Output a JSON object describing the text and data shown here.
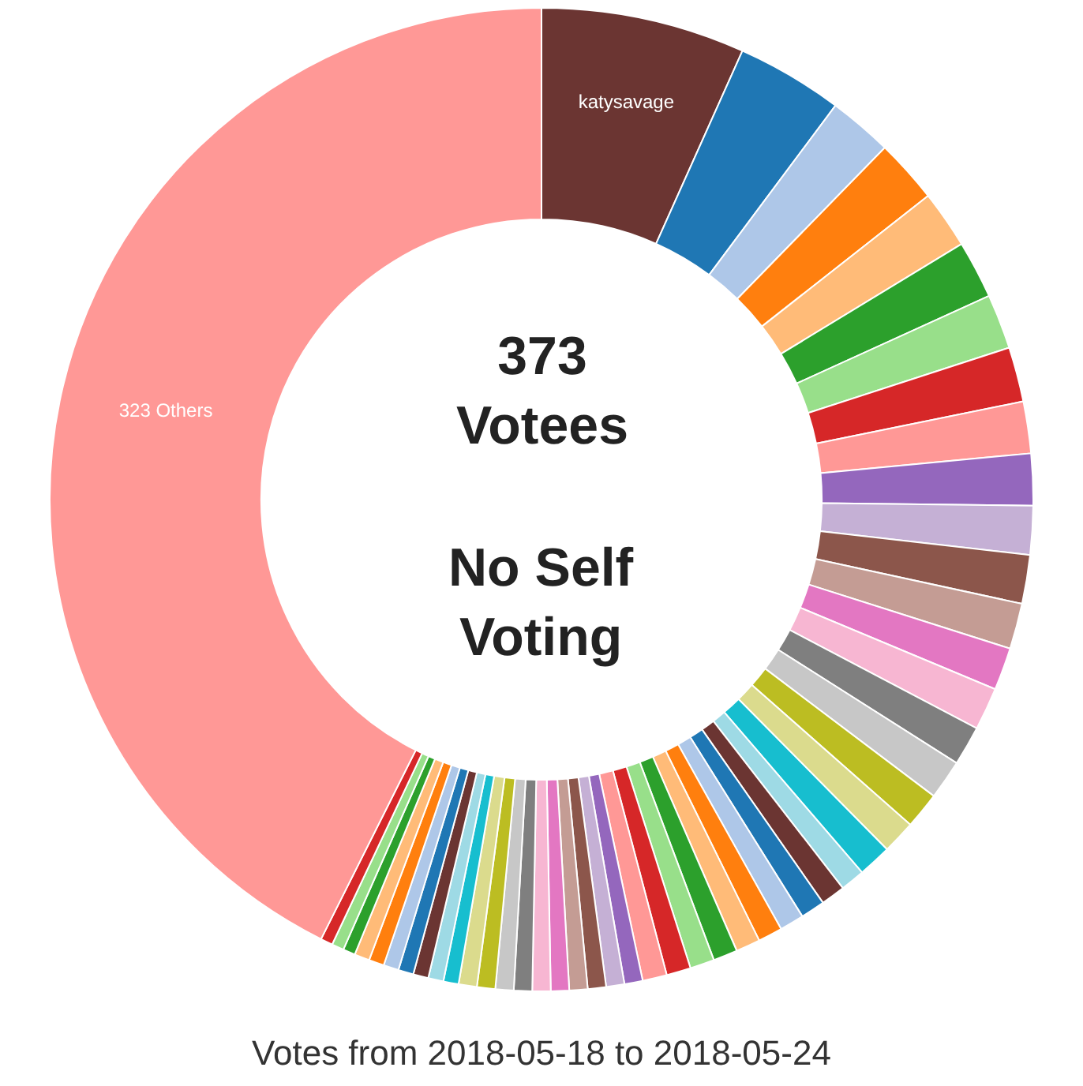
{
  "chart_data": {
    "type": "donut",
    "title": "Votes from 2018-05-18 to 2018-05-24",
    "annotations": [
      "373 Votees",
      "No Self Voting"
    ],
    "categories": [
      "katysavage",
      null,
      null,
      null,
      null,
      null,
      null,
      null,
      null,
      null,
      null,
      null,
      null,
      null,
      null,
      null,
      null,
      null,
      null,
      null,
      null,
      null,
      null,
      null,
      null,
      null,
      null,
      null,
      null,
      null,
      null,
      null,
      null,
      null,
      null,
      null,
      null,
      null,
      null,
      null,
      null,
      null,
      null,
      null,
      null,
      null,
      null,
      null,
      null,
      null,
      "323 Others"
    ],
    "values": [
      6.7,
      3.5,
      2.1,
      2.1,
      1.9,
      1.9,
      1.8,
      1.8,
      1.7,
      1.7,
      1.6,
      1.6,
      1.5,
      1.4,
      1.4,
      1.3,
      1.3,
      1.2,
      1.1,
      1.1,
      0.8,
      0.8,
      0.8,
      0.8,
      0.8,
      0.8,
      0.8,
      0.8,
      0.8,
      0.8,
      0.6,
      0.6,
      0.6,
      0.6,
      0.6,
      0.6,
      0.6,
      0.6,
      0.6,
      0.6,
      0.5,
      0.5,
      0.5,
      0.5,
      0.5,
      0.5,
      0.5,
      0.4,
      0.4,
      0.4,
      42.6
    ],
    "colors": [
      "#6b3532",
      "#1f77b4",
      "#aec7e8",
      "#ff7f0e",
      "#ffbb78",
      "#2ca02c",
      "#98df8a",
      "#d62728",
      "#ff9896",
      "#9467bd",
      "#c5b0d5",
      "#8c564b",
      "#c49c94",
      "#e377c2",
      "#f7b6d2",
      "#7f7f7f",
      "#c7c7c7",
      "#bcbd22",
      "#dbdb8d",
      "#17becf",
      "#9edae5",
      "#6b3532",
      "#1f77b4",
      "#aec7e8",
      "#ff7f0e",
      "#ffbb78",
      "#2ca02c",
      "#98df8a",
      "#d62728",
      "#ff9896",
      "#9467bd",
      "#c5b0d5",
      "#8c564b",
      "#c49c94",
      "#e377c2",
      "#f7b6d2",
      "#7f7f7f",
      "#c7c7c7",
      "#bcbd22",
      "#dbdb8d",
      "#17becf",
      "#9edae5",
      "#6b3532",
      "#1f77b4",
      "#aec7e8",
      "#ff7f0e",
      "#ffbb78",
      "#2ca02c",
      "#98df8a",
      "#d62728",
      "#ff9896"
    ]
  }
}
